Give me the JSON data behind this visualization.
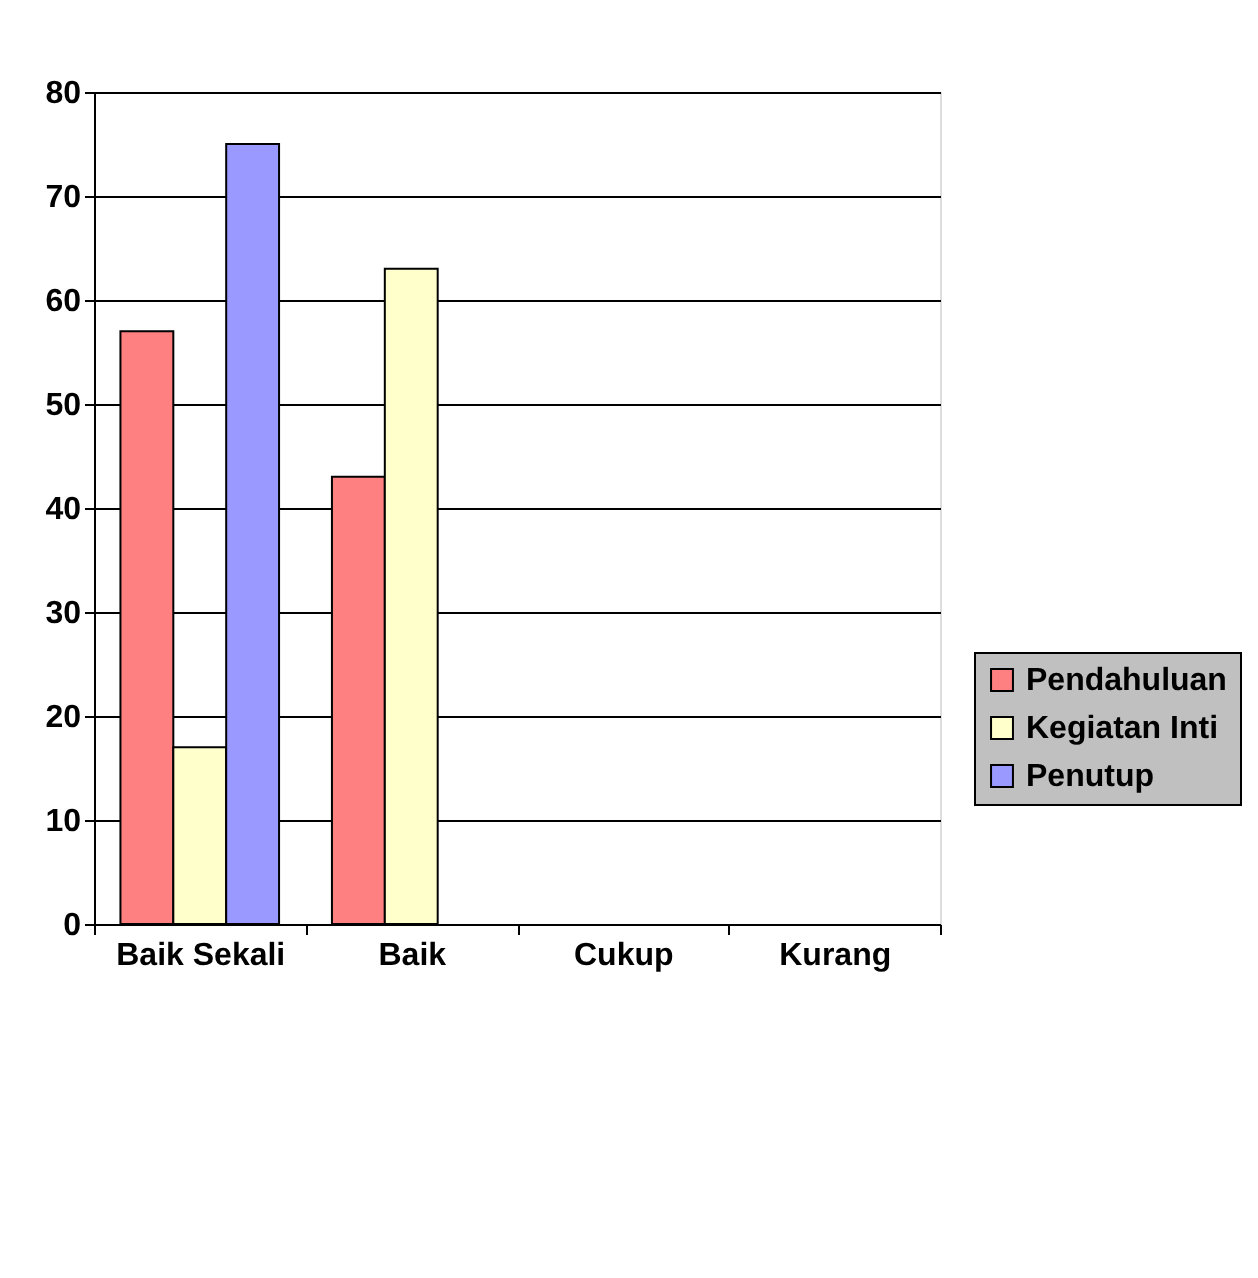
{
  "chart_data": {
    "type": "bar",
    "categories": [
      "Baik Sekali",
      "Baik",
      "Cukup",
      "Kurang"
    ],
    "series": [
      {
        "name": "Pendahuluan",
        "color": "#ff8080",
        "values": [
          57,
          43,
          null,
          null
        ]
      },
      {
        "name": "Kegiatan Inti",
        "color": "#ffffcc",
        "values": [
          17,
          63,
          null,
          null
        ]
      },
      {
        "name": "Penutup",
        "color": "#9999ff",
        "values": [
          75,
          null,
          null,
          null
        ]
      }
    ],
    "ylim": [
      0,
      80
    ],
    "yticks": [
      0,
      10,
      20,
      30,
      40,
      50,
      60,
      70,
      80
    ],
    "grid": "y",
    "legend": "right"
  }
}
